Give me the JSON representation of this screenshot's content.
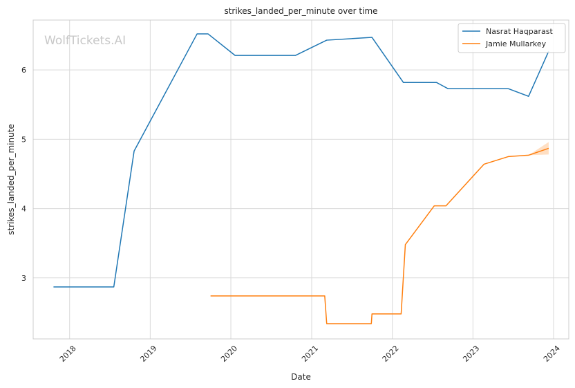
{
  "chart_data": {
    "type": "line",
    "title": "strikes_landed_per_minute over time",
    "xlabel": "Date",
    "ylabel": "strikes_landed_per_minute",
    "watermark": "WolfTickets.AI",
    "x_ticks": [
      "2018",
      "2019",
      "2020",
      "2021",
      "2022",
      "2023",
      "2024"
    ],
    "y_ticks": [
      "3",
      "4",
      "5",
      "6"
    ],
    "xlim": [
      "2017-07-20",
      "2024-03-10"
    ],
    "ylim": [
      2.12,
      6.72
    ],
    "grid": true,
    "legend_position": "top-right",
    "series": [
      {
        "name": "Nasrat Haqparast",
        "color": "#1f77b4",
        "x": [
          "2017-10-20",
          "2018-07-20",
          "2018-10-20",
          "2019-08-01",
          "2019-09-20",
          "2020-01-20",
          "2020-10-20",
          "2021-03-10",
          "2021-10-01",
          "2022-02-20",
          "2022-07-20",
          "2022-09-10",
          "2023-06-10",
          "2023-09-10",
          "2023-12-10"
        ],
        "y": [
          2.87,
          2.87,
          4.83,
          6.52,
          6.52,
          6.21,
          6.21,
          6.43,
          6.47,
          5.82,
          5.82,
          5.73,
          5.73,
          5.62,
          6.27
        ]
      },
      {
        "name": "Jamie Mullarkey",
        "color": "#ff7f0e",
        "x": [
          "2019-10-01",
          "2021-03-01",
          "2021-03-10",
          "2021-09-28",
          "2021-10-01",
          "2022-02-10",
          "2022-03-01",
          "2022-07-10",
          "2022-09-01",
          "2023-02-20",
          "2023-06-10",
          "2023-09-10",
          "2023-12-10"
        ],
        "y": [
          2.74,
          2.74,
          2.34,
          2.34,
          2.48,
          2.48,
          3.48,
          4.04,
          4.04,
          4.64,
          4.75,
          4.77,
          4.87
        ],
        "band": {
          "x": [
            "2023-09-10",
            "2023-12-10"
          ],
          "lower": [
            4.77,
            4.78
          ],
          "upper": [
            4.77,
            4.96
          ]
        }
      }
    ]
  }
}
